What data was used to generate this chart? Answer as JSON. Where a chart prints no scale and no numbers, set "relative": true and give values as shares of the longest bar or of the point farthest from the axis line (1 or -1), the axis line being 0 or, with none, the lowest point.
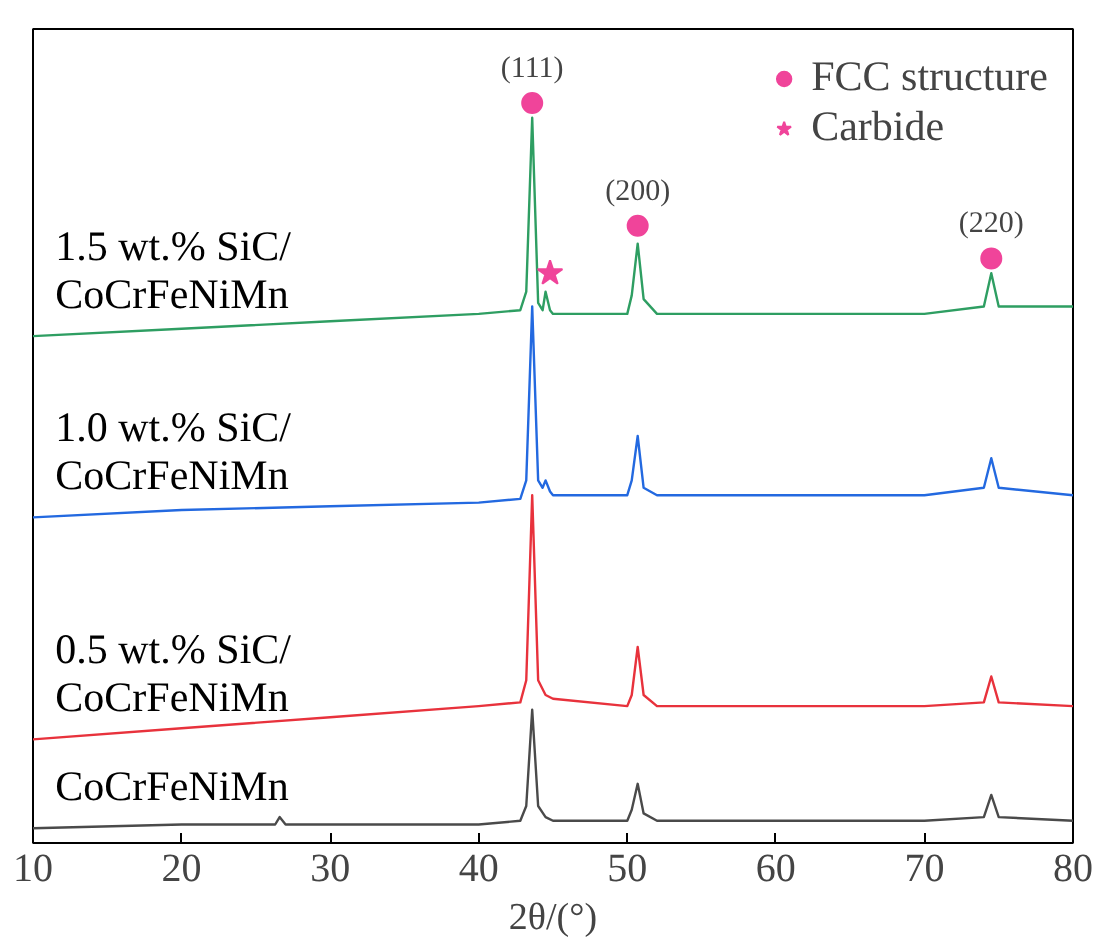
{
  "chart_data": {
    "type": "line",
    "relative": true,
    "xlabel": "2θ/(°)",
    "xlim": [
      10,
      80
    ],
    "xticks": [
      10,
      20,
      30,
      40,
      50,
      60,
      70,
      80
    ],
    "tick_labels": "x",
    "grid": false,
    "legend": "top right",
    "line_style": "solid",
    "series": [
      {
        "name": "CoCrFeNiMn",
        "color": "#4a4a4a",
        "x": [
          10,
          20,
          26.3,
          26.6,
          27,
          30,
          40,
          42.8,
          43.2,
          43.6,
          44.0,
          44.5,
          45,
          50,
          50.3,
          50.7,
          51.1,
          52,
          60,
          70,
          74,
          74.5,
          75,
          80
        ],
        "values": [
          0.02,
          0.025,
          0.025,
          0.035,
          0.025,
          0.025,
          0.025,
          0.03,
          0.05,
          0.18,
          0.05,
          0.035,
          0.03,
          0.03,
          0.045,
          0.08,
          0.04,
          0.03,
          0.03,
          0.03,
          0.035,
          0.065,
          0.035,
          0.03
        ]
      },
      {
        "name": "0.5 wt.% SiC/\nCoCrFeNiMn",
        "color": "#e8323c",
        "x": [
          10,
          20,
          30,
          40,
          42.8,
          43.2,
          43.6,
          44.0,
          44.5,
          45,
          50,
          50.3,
          50.7,
          51.1,
          52,
          60,
          70,
          74,
          74.5,
          75,
          80
        ],
        "values": [
          0.14,
          0.155,
          0.17,
          0.185,
          0.19,
          0.22,
          0.47,
          0.22,
          0.2,
          0.195,
          0.185,
          0.2,
          0.265,
          0.2,
          0.185,
          0.185,
          0.185,
          0.19,
          0.225,
          0.19,
          0.185
        ]
      },
      {
        "name": "1.0 wt.% SiC/\nCoCrFeNiMn",
        "color": "#2369e0",
        "x": [
          10,
          20,
          30,
          40,
          42.8,
          43.2,
          43.6,
          44.0,
          44.3,
          44.5,
          44.8,
          45,
          50,
          50.3,
          50.7,
          51.1,
          52,
          60,
          70,
          74,
          74.5,
          75,
          80
        ],
        "values": [
          0.44,
          0.45,
          0.455,
          0.46,
          0.465,
          0.49,
          0.725,
          0.49,
          0.48,
          0.49,
          0.475,
          0.47,
          0.47,
          0.49,
          0.55,
          0.48,
          0.47,
          0.47,
          0.47,
          0.48,
          0.52,
          0.48,
          0.47
        ]
      },
      {
        "name": "1.5 wt.% SiC/\nCoCrFeNiMn",
        "color": "#2e9e62",
        "x": [
          10,
          20,
          30,
          40,
          42.8,
          43.2,
          43.6,
          44.0,
          44.3,
          44.5,
          44.8,
          45,
          50,
          50.3,
          50.7,
          51.1,
          52,
          60,
          70,
          74,
          74.5,
          75,
          80
        ],
        "values": [
          0.685,
          0.695,
          0.705,
          0.715,
          0.72,
          0.745,
          0.98,
          0.73,
          0.72,
          0.745,
          0.72,
          0.715,
          0.715,
          0.74,
          0.81,
          0.735,
          0.715,
          0.715,
          0.715,
          0.725,
          0.77,
          0.725,
          0.725
        ]
      },
      {
        "name": "FCC structure",
        "type": "scatter",
        "marker": "circle",
        "color": "#f0449a",
        "x": [
          43.6,
          50.7,
          74.5
        ],
        "values": [
          1.0,
          0.834,
          0.79
        ]
      },
      {
        "name": "Carbide",
        "type": "scatter",
        "marker": "star",
        "color": "#f0449a",
        "x": [
          44.8
        ],
        "values": [
          0.77
        ]
      }
    ],
    "annotations": [
      {
        "text": "(111)",
        "x": 43.6,
        "y": 1.0
      },
      {
        "text": "(200)",
        "x": 50.7,
        "y": 0.834
      },
      {
        "text": "(220)",
        "x": 74.5,
        "y": 0.79
      }
    ]
  }
}
